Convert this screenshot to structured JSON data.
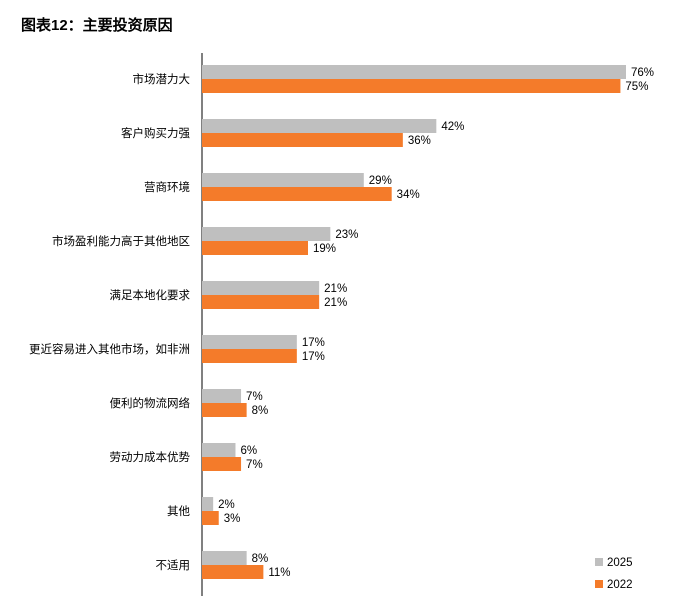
{
  "title": "图表12：主要投资原因",
  "chart_data": {
    "type": "bar",
    "orientation": "horizontal",
    "title": "图表12：主要投资原因",
    "categories": [
      "市场潜力大",
      "客户购买力强",
      "营商环境",
      "市场盈利能力高于其他地区",
      "满足本地化要求",
      "更近容易进入其他市场，如非洲",
      "便利的物流网络",
      "劳动力成本优势",
      "其他",
      "不适用"
    ],
    "series": [
      {
        "name": "2025",
        "color": "#BFBFBF",
        "values": [
          76,
          42,
          29,
          23,
          21,
          17,
          7,
          6,
          2,
          8
        ]
      },
      {
        "name": "2022",
        "color": "#F47B2A",
        "values": [
          75,
          36,
          34,
          19,
          21,
          17,
          8,
          7,
          3,
          11
        ]
      }
    ],
    "value_suffix": "%",
    "xlim": [
      0,
      76
    ],
    "grid": false,
    "legend_position": "bottom-right"
  }
}
